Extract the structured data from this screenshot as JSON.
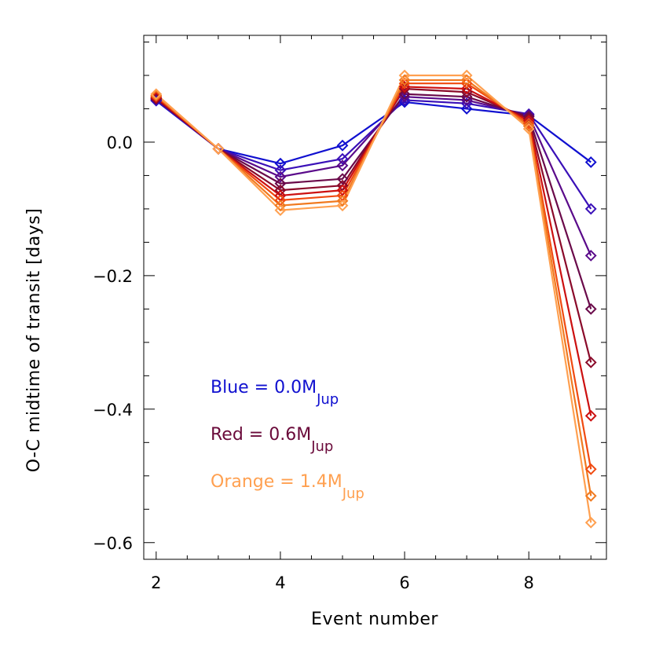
{
  "chart_data": {
    "type": "line",
    "title": "",
    "xlabel": "Event number",
    "ylabel": "O-C midtime of transit [days]",
    "xlim": [
      1.8,
      9.25
    ],
    "ylim": [
      -0.625,
      0.16
    ],
    "grid": false,
    "x_ticks": [
      2,
      4,
      6,
      8
    ],
    "x_tick_labels": [
      "2",
      "4",
      "6",
      "8"
    ],
    "y_ticks": [
      0.0,
      -0.2,
      -0.4,
      -0.6
    ],
    "y_tick_labels": [
      "0.0",
      "−0.2",
      "−0.4",
      "−0.6"
    ],
    "x": [
      2,
      3,
      4,
      5,
      6,
      7,
      8,
      9
    ],
    "series": [
      {
        "color": "#1010d0",
        "values": [
          0.062,
          -0.01,
          -0.032,
          -0.005,
          0.06,
          0.05,
          0.04,
          -0.03
        ]
      },
      {
        "color": "#3a10b8",
        "values": [
          0.063,
          -0.01,
          -0.042,
          -0.025,
          0.063,
          0.058,
          0.042,
          -0.1
        ]
      },
      {
        "color": "#5a0a8a",
        "values": [
          0.064,
          -0.01,
          -0.052,
          -0.035,
          0.068,
          0.063,
          0.04,
          -0.17
        ]
      },
      {
        "color": "#6a0a4a",
        "values": [
          0.065,
          -0.01,
          -0.062,
          -0.055,
          0.072,
          0.068,
          0.038,
          -0.25
        ]
      },
      {
        "color": "#8a0a2a",
        "values": [
          0.066,
          -0.01,
          -0.072,
          -0.065,
          0.08,
          0.075,
          0.035,
          -0.33
        ]
      },
      {
        "color": "#cc1010",
        "values": [
          0.067,
          -0.01,
          -0.08,
          -0.072,
          0.083,
          0.08,
          0.032,
          -0.41
        ]
      },
      {
        "color": "#f04a10",
        "values": [
          0.069,
          -0.01,
          -0.087,
          -0.08,
          0.088,
          0.088,
          0.028,
          -0.49
        ]
      },
      {
        "color": "#f07a20",
        "values": [
          0.07,
          -0.01,
          -0.095,
          -0.088,
          0.093,
          0.093,
          0.024,
          -0.53
        ]
      },
      {
        "color": "#ffa050",
        "values": [
          0.072,
          -0.01,
          -0.102,
          -0.095,
          0.1,
          0.1,
          0.02,
          -0.57
        ]
      }
    ],
    "legend": [
      {
        "text": "Blue = 0.0M",
        "sub": "Jup",
        "color": "#1010d0"
      },
      {
        "text": "Red = 0.6M",
        "sub": "Jup",
        "color": "#6a0a3a"
      },
      {
        "text": "Orange = 1.4M",
        "sub": "Jup",
        "color": "#ffa050"
      }
    ]
  }
}
